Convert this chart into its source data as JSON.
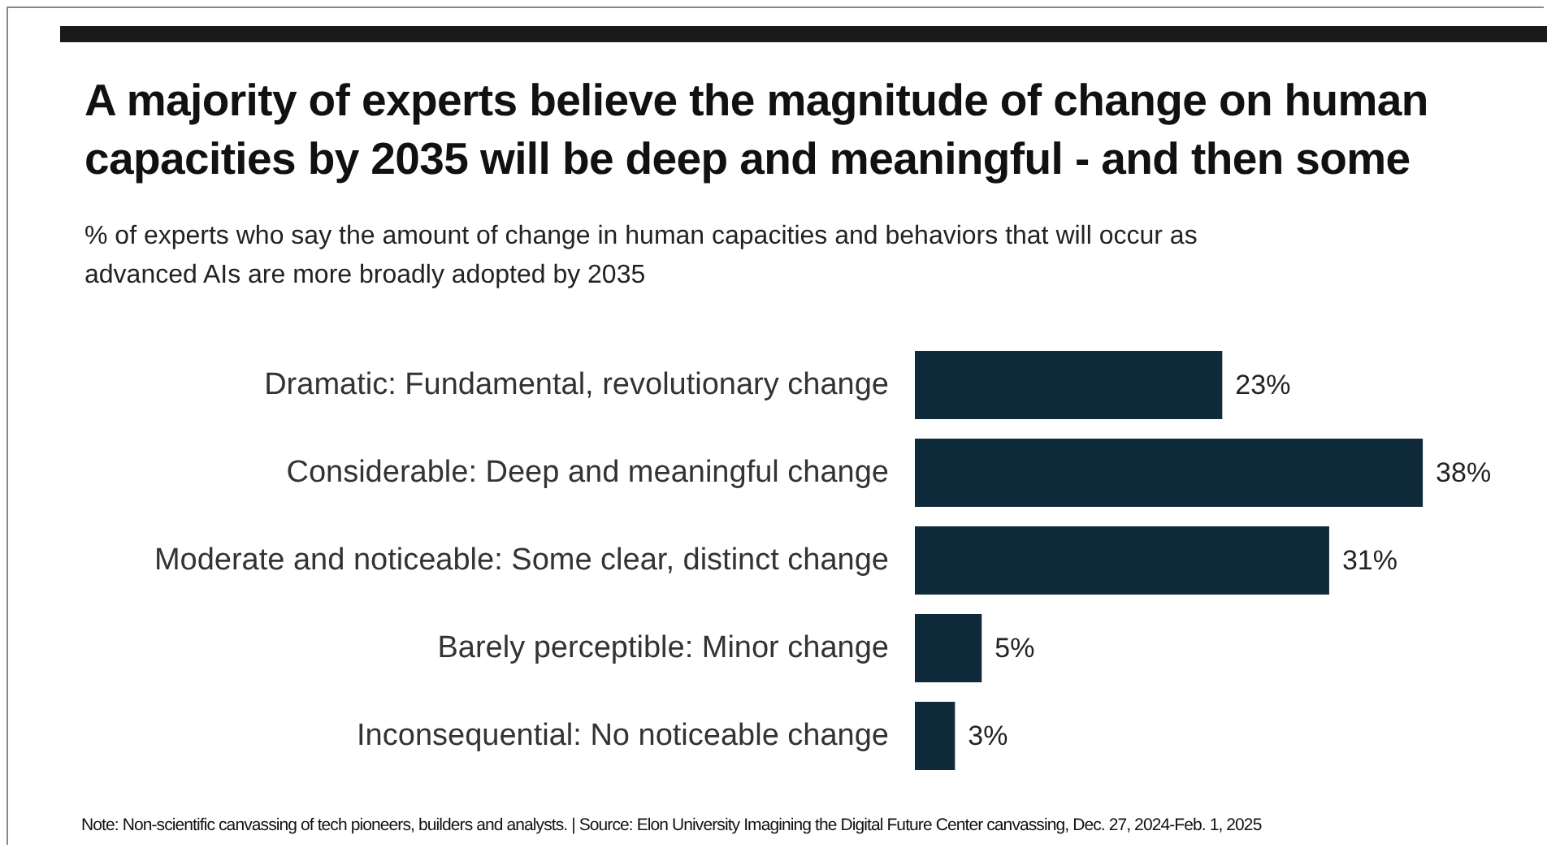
{
  "chart_data": {
    "type": "bar",
    "orientation": "horizontal",
    "title": "A majority of experts believe the magnitude of change on human capacities by 2035 will be deep and meaningful - and then some",
    "subtitle": "% of experts who say the amount of change in human capacities and behaviors that will occur as advanced AIs are more broadly adopted by 2035",
    "categories": [
      "Dramatic: Fundamental, revolutionary change",
      "Considerable: Deep and meaningful change",
      "Moderate and noticeable: Some clear, distinct change",
      "Barely perceptible: Minor change",
      "Inconsequential: No noticeable change"
    ],
    "values": [
      23,
      38,
      31,
      5,
      3
    ],
    "value_labels": [
      "23%",
      "38%",
      "31%",
      "5%",
      "3%"
    ],
    "color": "#0f2b3b",
    "annotations": [
      "Note: Non-scientific canvassing of tech pioneers, builders and analysts. | Source: Elon University Imagining the Digital Future Center canvassing,  Dec. 27, 2024-Feb. 1, 2025"
    ]
  }
}
